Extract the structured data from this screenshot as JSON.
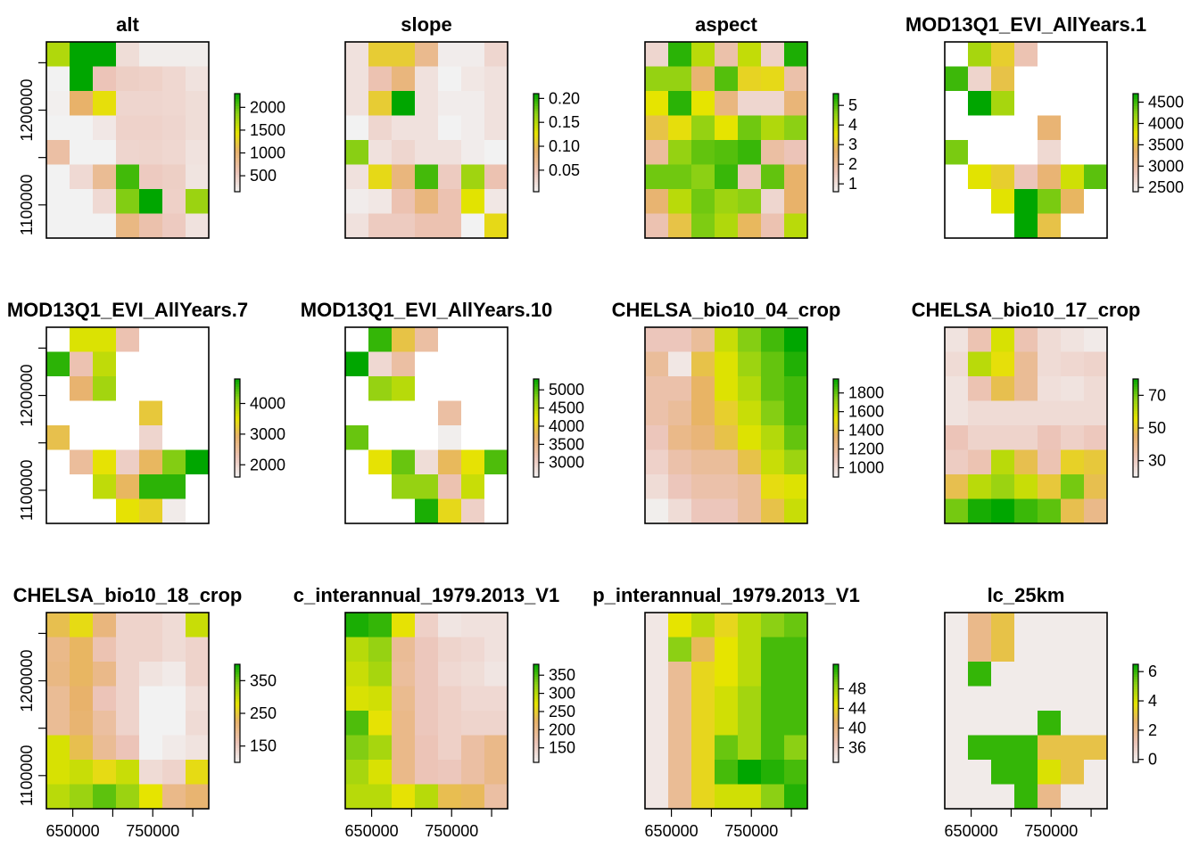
{
  "chart_data": [
    {
      "type": "heatmap",
      "title": "alt",
      "na": "#ffffff",
      "legend_ticks": [
        "500",
        "1000",
        "1500",
        "2000"
      ],
      "legend_range": [
        150,
        2300
      ],
      "y_ticks": [
        "1100000",
        "1200000"
      ],
      "grid": [
        [
          1700,
          2600,
          2600,
          350,
          200,
          200,
          200
        ],
        [
          60,
          2800,
          580,
          480,
          460,
          400,
          300
        ],
        [
          180,
          1050,
          1400,
          420,
          420,
          400,
          350
        ],
        [
          100,
          120,
          250,
          450,
          450,
          420,
          350
        ],
        [
          700,
          110,
          140,
          420,
          430,
          400,
          300
        ],
        [
          60,
          380,
          800,
          2100,
          520,
          480,
          280
        ],
        [
          50,
          80,
          380,
          1900,
          2700,
          470,
          1800
        ],
        [
          50,
          60,
          60,
          900,
          650,
          520,
          300
        ]
      ]
    },
    {
      "type": "heatmap",
      "title": "slope",
      "na": "#ffffff",
      "legend_ticks": [
        "0.05",
        "0.10",
        "0.15",
        "0.20"
      ],
      "legend_range": [
        0.005,
        0.21
      ],
      "y_ticks": [],
      "grid": [
        [
          0.02,
          0.11,
          0.11,
          0.07,
          0.01,
          0.01,
          0.03
        ],
        [
          0.02,
          0.05,
          0.08,
          0.02,
          0.005,
          0.015,
          0.02
        ],
        [
          0.02,
          0.11,
          0.24,
          0.02,
          0.01,
          0.01,
          0.02
        ],
        [
          0.005,
          0.03,
          0.02,
          0.02,
          0.005,
          0.01,
          0.02
        ],
        [
          0.17,
          0.02,
          0.03,
          0.02,
          0.02,
          0.01,
          0.005
        ],
        [
          0.02,
          0.12,
          0.08,
          0.19,
          0.04,
          0.16,
          0.05
        ],
        [
          0.01,
          0.015,
          0.05,
          0.08,
          0.05,
          0.13,
          0.015
        ],
        [
          0.02,
          0.04,
          0.04,
          0.05,
          0.05,
          0.005,
          0.12
        ]
      ]
    },
    {
      "type": "heatmap",
      "title": "aspect",
      "na": "#ffffff",
      "legend_ticks": [
        "1",
        "2",
        "3",
        "4",
        "5"
      ],
      "legend_range": [
        0.6,
        5.6
      ],
      "y_ticks": [],
      "grid": [
        [
          1.2,
          5.3,
          4.1,
          1.8,
          4.0,
          1.3,
          5.4
        ],
        [
          4.5,
          4.5,
          2.6,
          5.0,
          3.3,
          3.4,
          1.8
        ],
        [
          3.6,
          5.3,
          3.6,
          2.4,
          1.2,
          1.2,
          2.5
        ],
        [
          3.0,
          3.5,
          4.5,
          3.6,
          4.8,
          4.2,
          4.6
        ],
        [
          2.0,
          4.5,
          4.9,
          5.0,
          5.2,
          1.9,
          1.6
        ],
        [
          4.8,
          4.8,
          4.6,
          5.2,
          1.5,
          4.9,
          2.7
        ],
        [
          2.6,
          4.1,
          4.8,
          4.4,
          4.6,
          1.2,
          2.7
        ],
        [
          1.7,
          3.0,
          4.7,
          4.2,
          2.8,
          1.7,
          4.1
        ]
      ]
    },
    {
      "type": "heatmap",
      "title": "MOD13Q1_EVI_AllYears.1",
      "na": "#ffffff",
      "legend_ticks": [
        "2500",
        "3000",
        "3500",
        "4000",
        "4500"
      ],
      "legend_range": [
        2400,
        4700
      ],
      "y_ticks": [],
      "grid": [
        [
          null,
          4100,
          3600,
          2900,
          null,
          null,
          null
        ],
        [
          4500,
          2700,
          3500,
          null,
          null,
          null,
          null
        ],
        [
          null,
          4700,
          4100,
          null,
          null,
          null,
          null
        ],
        [
          null,
          null,
          null,
          null,
          3300,
          null,
          null
        ],
        [
          4300,
          null,
          null,
          null,
          2650,
          null,
          null
        ],
        [
          null,
          3800,
          3600,
          2850,
          3300,
          3900,
          4400
        ],
        [
          null,
          null,
          3800,
          4900,
          4300,
          3400,
          null
        ],
        [
          null,
          null,
          null,
          4800,
          3500,
          null,
          null
        ]
      ]
    },
    {
      "type": "heatmap",
      "title": "MOD13Q1_EVI_AllYears.7",
      "na": "#ffffff",
      "legend_ticks": [
        "2000",
        "3000",
        "4000"
      ],
      "legend_range": [
        1600,
        4800
      ],
      "y_ticks": [
        "1100000",
        "1200000"
      ],
      "grid": [
        [
          null,
          3600,
          3600,
          2300,
          null,
          null,
          null
        ],
        [
          4600,
          2300,
          3800,
          null,
          null,
          null,
          null
        ],
        [
          null,
          2900,
          4000,
          null,
          null,
          null,
          null
        ],
        [
          null,
          null,
          null,
          null,
          3200,
          null,
          null
        ],
        [
          3100,
          null,
          null,
          null,
          2000,
          null,
          null
        ],
        [
          null,
          2500,
          3500,
          2100,
          3000,
          4200,
          4800
        ],
        [
          null,
          null,
          3800,
          3000,
          4600,
          4600,
          null
        ],
        [
          null,
          null,
          null,
          3500,
          3300,
          1700,
          null
        ]
      ]
    },
    {
      "type": "heatmap",
      "title": "MOD13Q1_EVI_AllYears.10",
      "na": "#ffffff",
      "legend_ticks": [
        "3000",
        "3500",
        "4000",
        "4500",
        "5000"
      ],
      "legend_range": [
        2600,
        5300
      ],
      "y_ticks": [],
      "grid": [
        [
          null,
          5100,
          3900,
          3300,
          null,
          null,
          null
        ],
        [
          5300,
          2900,
          3300,
          null,
          null,
          null,
          null
        ],
        [
          null,
          4700,
          4500,
          null,
          null,
          null,
          null
        ],
        [
          null,
          null,
          null,
          null,
          3300,
          null,
          null
        ],
        [
          4900,
          null,
          null,
          null,
          2650,
          null,
          null
        ],
        [
          null,
          4200,
          4900,
          2850,
          3800,
          4200,
          5000
        ],
        [
          null,
          null,
          4700,
          4700,
          3200,
          4400,
          null
        ],
        [
          null,
          null,
          null,
          5200,
          4100,
          3000,
          null
        ]
      ]
    },
    {
      "type": "heatmap",
      "title": "CHELSA_bio10_04_crop",
      "na": "#ffffff",
      "legend_ticks": [
        "1000",
        "1200",
        "1400",
        "1600",
        "1800"
      ],
      "legend_range": [
        900,
        1950
      ],
      "y_ticks": [],
      "grid": [
        [
          1100,
          1100,
          1200,
          1600,
          1750,
          1850,
          1950
        ],
        [
          1200,
          950,
          1400,
          1550,
          1700,
          1800,
          1900
        ],
        [
          1150,
          1150,
          1350,
          1550,
          1650,
          1800,
          1850
        ],
        [
          1150,
          1200,
          1350,
          1450,
          1600,
          1750,
          1850
        ],
        [
          1100,
          1250,
          1300,
          1400,
          1550,
          1650,
          1800
        ],
        [
          1050,
          1150,
          1200,
          1200,
          1400,
          1600,
          1700
        ],
        [
          1000,
          1100,
          1150,
          1150,
          1200,
          1500,
          1550
        ],
        [
          920,
          1000,
          1100,
          1100,
          1200,
          1400,
          1600
        ]
      ]
    },
    {
      "type": "heatmap",
      "title": "CHELSA_bio10_17_crop",
      "na": "#ffffff",
      "legend_ticks": [
        "30",
        "50",
        "70"
      ],
      "legend_range": [
        20,
        80
      ],
      "y_ticks": [],
      "grid": [
        [
          24,
          33,
          58,
          33,
          26,
          24,
          22
        ],
        [
          26,
          62,
          55,
          38,
          26,
          27,
          28
        ],
        [
          24,
          33,
          48,
          38,
          25,
          24,
          26
        ],
        [
          24,
          26,
          26,
          26,
          26,
          26,
          26
        ],
        [
          32,
          28,
          28,
          28,
          32,
          29,
          31
        ],
        [
          30,
          33,
          62,
          48,
          33,
          52,
          50
        ],
        [
          48,
          62,
          66,
          60,
          50,
          70,
          48
        ],
        [
          70,
          78,
          80,
          75,
          72,
          48,
          40
        ]
      ]
    },
    {
      "type": "heatmap",
      "title": "CHELSA_bio10_18_crop",
      "na": "#ffffff",
      "legend_ticks": [
        "150",
        "250",
        "350"
      ],
      "legend_range": [
        100,
        400
      ],
      "y_ticks": [
        "1100000",
        "1200000"
      ],
      "grid": [
        [
          240,
          270,
          210,
          140,
          140,
          130,
          300
        ],
        [
          200,
          230,
          165,
          140,
          140,
          130,
          140
        ],
        [
          205,
          230,
          200,
          140,
          120,
          110,
          140
        ],
        [
          190,
          225,
          160,
          140,
          100,
          100,
          125
        ],
        [
          190,
          220,
          180,
          140,
          100,
          100,
          130
        ],
        [
          290,
          240,
          190,
          160,
          100,
          110,
          120
        ],
        [
          290,
          300,
          270,
          300,
          130,
          140,
          270
        ],
        [
          310,
          330,
          360,
          330,
          280,
          200,
          220
        ]
      ]
    },
    {
      "type": "heatmap",
      "title": "c_interannual_1979.2013_V1",
      "na": "#ffffff",
      "legend_ticks": [
        "150",
        "200",
        "250",
        "300",
        "350"
      ],
      "legend_range": [
        110,
        380
      ],
      "y_ticks": [],
      "grid": [
        [
          370,
          360,
          270,
          150,
          125,
          130,
          130
        ],
        [
          300,
          320,
          190,
          160,
          145,
          140,
          130
        ],
        [
          290,
          310,
          185,
          160,
          140,
          135,
          125
        ],
        [
          280,
          285,
          195,
          160,
          150,
          140,
          140
        ],
        [
          350,
          270,
          200,
          160,
          150,
          145,
          145
        ],
        [
          330,
          310,
          200,
          165,
          150,
          180,
          200
        ],
        [
          310,
          280,
          200,
          165,
          160,
          180,
          200
        ],
        [
          300,
          300,
          270,
          300,
          235,
          230,
          180
        ]
      ]
    },
    {
      "type": "heatmap",
      "title": "p_interannual_1979.2013_V1",
      "na": "#ffffff",
      "legend_ticks": [
        "36",
        "40",
        "44",
        "48"
      ],
      "legend_range": [
        33,
        53
      ],
      "y_ticks": [],
      "grid": [
        [
          34,
          45,
          47,
          44,
          47,
          49,
          50
        ],
        [
          34,
          49,
          42,
          45,
          47,
          51,
          51
        ],
        [
          34,
          39,
          44,
          45,
          47,
          51,
          51
        ],
        [
          34,
          39,
          44,
          46,
          48,
          51,
          51
        ],
        [
          34,
          39,
          44,
          46,
          48,
          51,
          51
        ],
        [
          34,
          39,
          44,
          50,
          48,
          51,
          49
        ],
        [
          34,
          39,
          44,
          51,
          54,
          52,
          51
        ],
        [
          34,
          39,
          44,
          46,
          46,
          49,
          52
        ]
      ]
    },
    {
      "type": "heatmap",
      "title": "lc_25km",
      "na": "#ffffff",
      "legend_ticks": [
        "0",
        "2",
        "4",
        "6"
      ],
      "legend_range": [
        -0.2,
        6.5
      ],
      "y_ticks": [],
      "grid": [
        [
          0,
          2,
          3,
          0,
          0,
          0,
          0
        ],
        [
          0,
          2,
          3,
          0,
          0,
          0,
          0
        ],
        [
          0,
          6,
          0,
          0,
          0,
          0,
          0
        ],
        [
          0,
          0,
          0,
          0,
          0,
          0,
          0
        ],
        [
          0,
          0,
          0,
          0,
          6,
          0,
          0
        ],
        [
          0,
          6,
          6,
          6,
          3,
          3,
          3
        ],
        [
          0,
          0,
          6,
          6,
          4,
          3,
          0
        ],
        [
          0,
          0,
          0,
          6,
          2,
          0,
          0
        ]
      ]
    }
  ],
  "x_ticks": [
    "650000",
    "750000"
  ]
}
